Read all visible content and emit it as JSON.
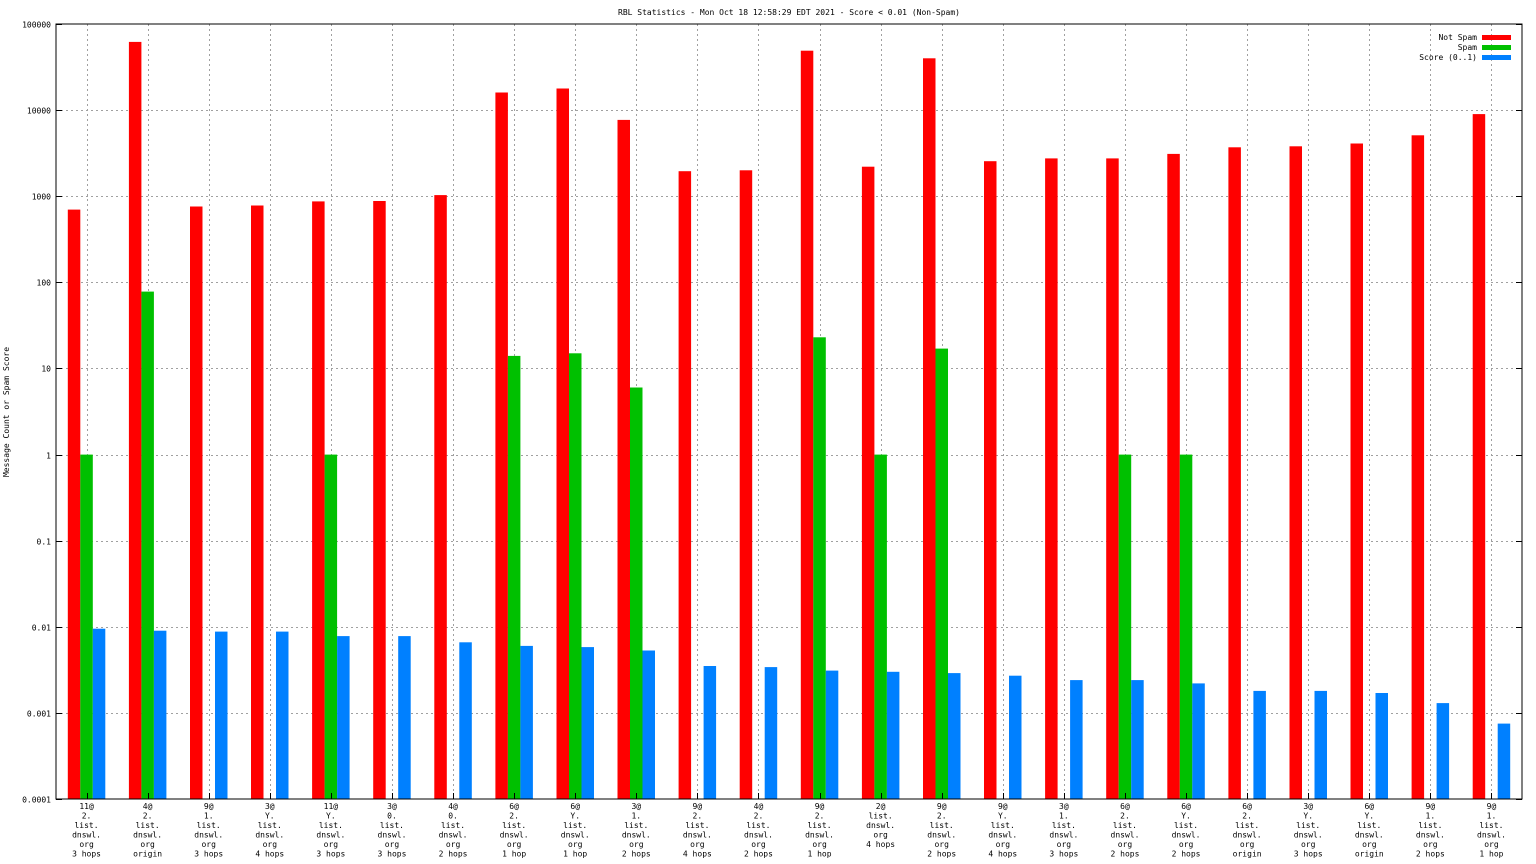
{
  "chart_data": {
    "type": "bar",
    "title": "RBL Statistics - Mon Oct 18 12:58:29 EDT 2021 - Score < 0.01 (Non-Spam)",
    "xlabel": "",
    "ylabel": "Message Count or Spam Score",
    "yscale": "log",
    "ylim": [
      0.0001,
      100000
    ],
    "yticks": [
      "0.0001",
      "0.001",
      "0.01",
      "0.1",
      "1",
      "10",
      "100",
      "1000",
      "10000",
      "100000"
    ],
    "grid": true,
    "legend_position": "top-right",
    "categories": [
      [
        "11@",
        "2.",
        "list.",
        "dnswl.",
        "org",
        "3 hops"
      ],
      [
        "4@",
        "2.",
        "list.",
        "dnswl.",
        "org",
        "origin"
      ],
      [
        "9@",
        "1.",
        "list.",
        "dnswl.",
        "org",
        "3 hops"
      ],
      [
        "3@",
        "Y.",
        "list.",
        "dnswl.",
        "org",
        "4 hops"
      ],
      [
        "11@",
        "Y.",
        "list.",
        "dnswl.",
        "org",
        "3 hops"
      ],
      [
        "3@",
        "0.",
        "list.",
        "dnswl.",
        "org",
        "3 hops"
      ],
      [
        "4@",
        "0.",
        "list.",
        "dnswl.",
        "org",
        "2 hops"
      ],
      [
        "6@",
        "2.",
        "list.",
        "dnswl.",
        "org",
        "1 hop"
      ],
      [
        "6@",
        "Y.",
        "list.",
        "dnswl.",
        "org",
        "1 hop"
      ],
      [
        "3@",
        "1.",
        "list.",
        "dnswl.",
        "org",
        "2 hops"
      ],
      [
        "9@",
        "2.",
        "list.",
        "dnswl.",
        "org",
        "4 hops"
      ],
      [
        "4@",
        "2.",
        "list.",
        "dnswl.",
        "org",
        "2 hops"
      ],
      [
        "9@",
        "2.",
        "list.",
        "dnswl.",
        "org",
        "1 hop"
      ],
      [
        "2@",
        "list.",
        "dnswl.",
        "org",
        "4 hops"
      ],
      [
        "9@",
        "2.",
        "list.",
        "dnswl.",
        "org",
        "2 hops"
      ],
      [
        "9@",
        "Y.",
        "list.",
        "dnswl.",
        "org",
        "4 hops"
      ],
      [
        "3@",
        "1.",
        "list.",
        "dnswl.",
        "org",
        "3 hops"
      ],
      [
        "6@",
        "2.",
        "list.",
        "dnswl.",
        "org",
        "2 hops"
      ],
      [
        "6@",
        "Y.",
        "list.",
        "dnswl.",
        "org",
        "2 hops"
      ],
      [
        "6@",
        "2.",
        "list.",
        "dnswl.",
        "org",
        "origin"
      ],
      [
        "3@",
        "Y.",
        "list.",
        "dnswl.",
        "org",
        "3 hops"
      ],
      [
        "6@",
        "Y.",
        "list.",
        "dnswl.",
        "org",
        "origin"
      ],
      [
        "9@",
        "1.",
        "list.",
        "dnswl.",
        "org",
        "2 hops"
      ],
      [
        "9@",
        "1.",
        "list.",
        "dnswl.",
        "org",
        "1 hop"
      ]
    ],
    "series": [
      {
        "name": "Not Spam",
        "color": "#ff0000",
        "values": [
          700,
          62000,
          760,
          780,
          870,
          880,
          1030,
          16000,
          17800,
          7700,
          1950,
          2000,
          49000,
          2200,
          40000,
          2550,
          2750,
          2750,
          3100,
          3700,
          3800,
          4100,
          5100,
          9000
        ]
      },
      {
        "name": "Spam",
        "color": "#00c000",
        "values": [
          1,
          78,
          null,
          null,
          1,
          null,
          null,
          14,
          15,
          6,
          null,
          null,
          23,
          1,
          17,
          null,
          null,
          1,
          1,
          null,
          null,
          null,
          null,
          null
        ]
      },
      {
        "name": "Score (0..1)",
        "color": "#0080ff",
        "values": [
          0.0095,
          0.009,
          0.0088,
          0.0088,
          0.0078,
          0.0078,
          0.0066,
          0.006,
          0.0058,
          0.0053,
          0.0035,
          0.0034,
          0.0031,
          0.003,
          0.0029,
          0.0027,
          0.0024,
          0.0024,
          0.0022,
          0.0018,
          0.0018,
          0.0017,
          0.0013,
          0.00075
        ]
      }
    ]
  }
}
